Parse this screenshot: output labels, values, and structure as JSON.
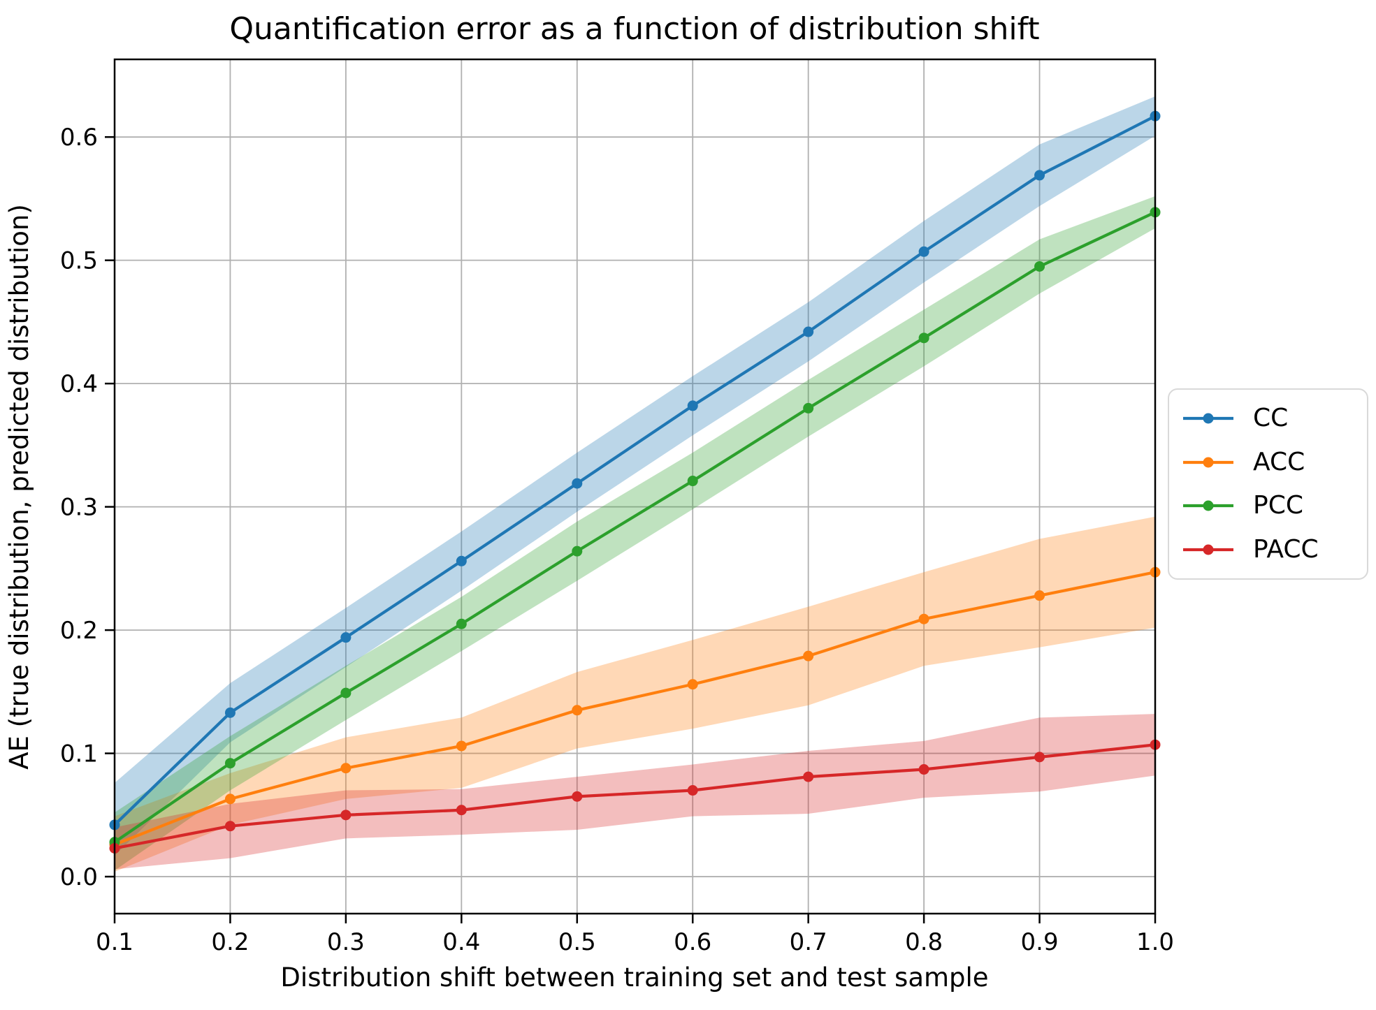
{
  "chart_data": {
    "type": "line",
    "title": "Quantification error as a function of distribution shift",
    "xlabel": "Distribution shift between training set and test sample",
    "ylabel": "AE (true distribution, predicted distribution)",
    "x": [
      0.1,
      0.2,
      0.3,
      0.4,
      0.5,
      0.6,
      0.7,
      0.8,
      0.9,
      1.0
    ],
    "x_tick_labels": [
      "0.1",
      "0.2",
      "0.3",
      "0.4",
      "0.5",
      "0.6",
      "0.7",
      "0.8",
      "0.9",
      "1.0"
    ],
    "y_ticks": [
      0.0,
      0.1,
      0.2,
      0.3,
      0.4,
      0.5,
      0.6
    ],
    "y_tick_labels": [
      "0.0",
      "0.1",
      "0.2",
      "0.3",
      "0.4",
      "0.5",
      "0.6"
    ],
    "xlim": [
      0.1,
      1.0
    ],
    "ylim": [
      -0.03,
      0.663
    ],
    "grid": true,
    "grid_color": "#b0b0b0",
    "band_alpha": 0.3,
    "legend_position": "outside-right-center",
    "series": [
      {
        "name": "CC",
        "color": "#1f77b4",
        "values": [
          0.042,
          0.133,
          0.194,
          0.256,
          0.319,
          0.382,
          0.442,
          0.507,
          0.569,
          0.617
        ],
        "band_upper": [
          0.076,
          0.157,
          0.218,
          0.28,
          0.344,
          0.406,
          0.466,
          0.532,
          0.594,
          0.633
        ],
        "band_lower": [
          0.017,
          0.109,
          0.17,
          0.232,
          0.296,
          0.358,
          0.418,
          0.482,
          0.544,
          0.601
        ]
      },
      {
        "name": "ACC",
        "color": "#ff7f0e",
        "values": [
          0.026,
          0.063,
          0.088,
          0.106,
          0.135,
          0.156,
          0.179,
          0.209,
          0.228,
          0.247
        ],
        "band_upper": [
          0.049,
          0.084,
          0.113,
          0.129,
          0.166,
          0.192,
          0.219,
          0.247,
          0.274,
          0.292
        ],
        "band_lower": [
          0.004,
          0.042,
          0.063,
          0.072,
          0.104,
          0.12,
          0.139,
          0.171,
          0.186,
          0.202
        ]
      },
      {
        "name": "PCC",
        "color": "#2ca02c",
        "values": [
          0.028,
          0.092,
          0.149,
          0.205,
          0.264,
          0.321,
          0.38,
          0.437,
          0.495,
          0.539
        ],
        "band_upper": [
          0.052,
          0.114,
          0.171,
          0.227,
          0.288,
          0.344,
          0.403,
          0.46,
          0.517,
          0.552
        ],
        "band_lower": [
          0.005,
          0.07,
          0.127,
          0.183,
          0.24,
          0.298,
          0.357,
          0.414,
          0.473,
          0.526
        ]
      },
      {
        "name": "PACC",
        "color": "#d62728",
        "values": [
          0.023,
          0.041,
          0.05,
          0.054,
          0.065,
          0.07,
          0.081,
          0.087,
          0.097,
          0.107
        ],
        "band_upper": [
          0.04,
          0.059,
          0.07,
          0.071,
          0.081,
          0.091,
          0.102,
          0.11,
          0.129,
          0.132
        ],
        "band_lower": [
          0.006,
          0.015,
          0.031,
          0.034,
          0.038,
          0.049,
          0.051,
          0.064,
          0.069,
          0.082
        ]
      }
    ]
  }
}
